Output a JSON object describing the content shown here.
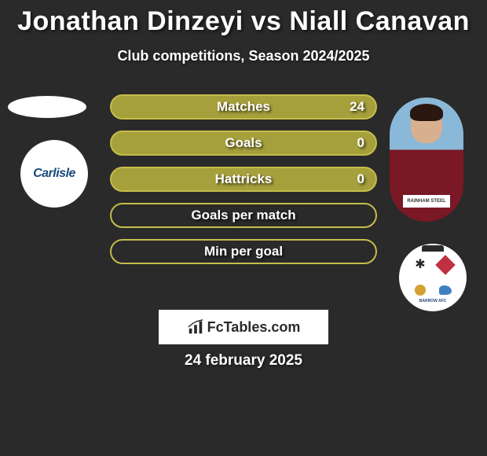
{
  "title": "Jonathan Dinzeyi vs Niall Canavan",
  "subtitle": "Club competitions, Season 2024/2025",
  "date": "24 february 2025",
  "footer": {
    "brand": "FcTables.com"
  },
  "colors": {
    "bar_fill": "#a6a03c",
    "bar_border": "#c4bd4a",
    "background": "#2a2a2a",
    "text": "#ffffff"
  },
  "stats": [
    {
      "label": "Matches",
      "value": "24",
      "filled": true
    },
    {
      "label": "Goals",
      "value": "0",
      "filled": true
    },
    {
      "label": "Hattricks",
      "value": "0",
      "filled": true
    },
    {
      "label": "Goals per match",
      "value": "",
      "filled": false
    },
    {
      "label": "Min per goal",
      "value": "",
      "filled": false
    }
  ],
  "left_badge": {
    "text": "Carlisle"
  },
  "right_avatar": {
    "sponsor": "RAINHAM STEEL"
  },
  "right_badge": {
    "text": "BARROW AFC"
  }
}
